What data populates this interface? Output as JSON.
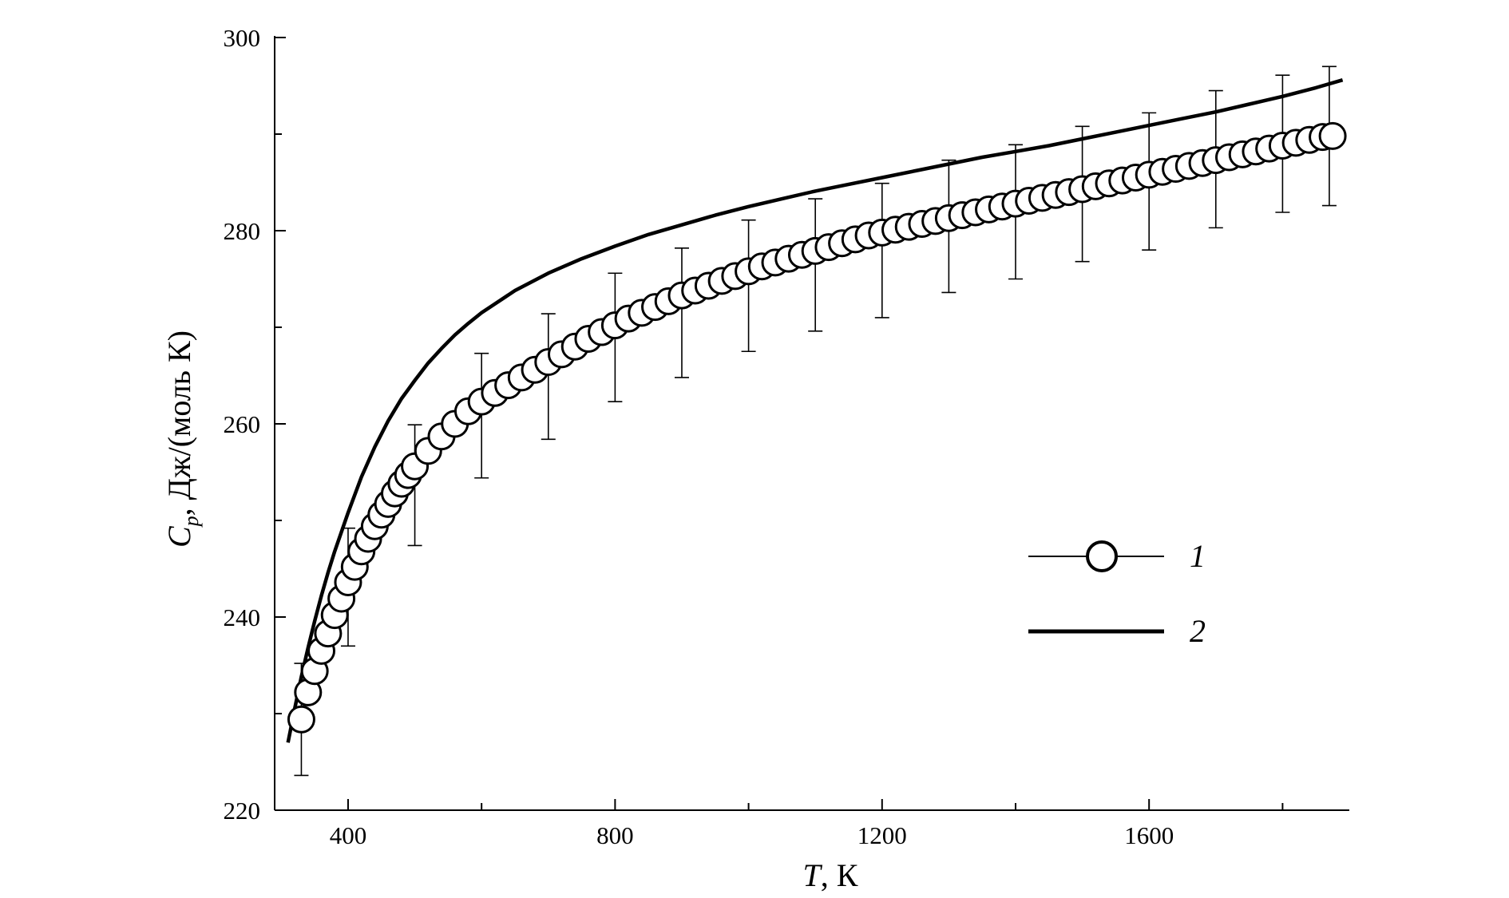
{
  "chart_data": {
    "type": "scatter",
    "xlabel": {
      "symbol": "T",
      "rest": ", К"
    },
    "ylabel": {
      "symbol": "C",
      "sub": "p",
      "rest": ", Дж/(моль К)"
    },
    "xlim": [
      290,
      1900
    ],
    "ylim": [
      220,
      300
    ],
    "xticks": [
      400,
      800,
      1200,
      1600
    ],
    "yticks": [
      220,
      240,
      260,
      280,
      300
    ],
    "grid": false,
    "legend_position": "right",
    "series": [
      {
        "name": "1",
        "style": "markers",
        "x": [
          330,
          340,
          350,
          360,
          370,
          380,
          390,
          400,
          410,
          420,
          430,
          440,
          450,
          460,
          470,
          480,
          490,
          500,
          520,
          540,
          560,
          580,
          600,
          620,
          640,
          660,
          680,
          700,
          720,
          740,
          760,
          780,
          800,
          820,
          840,
          860,
          880,
          900,
          920,
          940,
          960,
          980,
          1000,
          1020,
          1040,
          1060,
          1080,
          1100,
          1120,
          1140,
          1160,
          1180,
          1200,
          1220,
          1240,
          1260,
          1280,
          1300,
          1320,
          1340,
          1360,
          1380,
          1400,
          1420,
          1440,
          1460,
          1480,
          1500,
          1520,
          1540,
          1560,
          1580,
          1600,
          1620,
          1640,
          1660,
          1680,
          1700,
          1720,
          1740,
          1760,
          1780,
          1800,
          1820,
          1840,
          1860,
          1875
        ],
        "y": [
          229.4,
          232.2,
          234.4,
          236.5,
          238.3,
          240.2,
          241.9,
          243.6,
          245.2,
          246.8,
          248.1,
          249.4,
          250.6,
          251.7,
          252.8,
          253.8,
          254.7,
          255.6,
          257.2,
          258.7,
          260.0,
          261.3,
          262.3,
          263.2,
          264.0,
          264.8,
          265.6,
          266.4,
          267.2,
          268.0,
          268.8,
          269.5,
          270.2,
          270.9,
          271.5,
          272.1,
          272.7,
          273.3,
          273.8,
          274.3,
          274.8,
          275.3,
          275.8,
          276.3,
          276.7,
          277.1,
          277.5,
          277.9,
          278.3,
          278.7,
          279.1,
          279.5,
          279.8,
          280.1,
          280.4,
          280.7,
          281.0,
          281.3,
          281.6,
          281.9,
          282.2,
          282.5,
          282.8,
          283.1,
          283.4,
          283.7,
          284.0,
          284.3,
          284.6,
          284.9,
          285.2,
          285.5,
          285.8,
          286.1,
          286.4,
          286.7,
          287.0,
          287.3,
          287.6,
          287.9,
          288.2,
          288.5,
          288.8,
          289.1,
          289.4,
          289.7,
          289.8
        ]
      },
      {
        "name": "2",
        "style": "line",
        "x": [
          310,
          320,
          330,
          340,
          350,
          360,
          370,
          380,
          390,
          400,
          420,
          440,
          460,
          480,
          500,
          520,
          540,
          560,
          580,
          600,
          650,
          700,
          750,
          800,
          850,
          900,
          950,
          1000,
          1050,
          1100,
          1150,
          1200,
          1250,
          1300,
          1350,
          1400,
          1450,
          1500,
          1550,
          1600,
          1650,
          1700,
          1750,
          1800,
          1850,
          1890
        ],
        "y": [
          227.0,
          230.5,
          233.8,
          236.8,
          239.6,
          242.2,
          244.6,
          246.8,
          248.8,
          250.8,
          254.5,
          257.6,
          260.3,
          262.6,
          264.5,
          266.3,
          267.8,
          269.2,
          270.4,
          271.5,
          273.8,
          275.6,
          277.1,
          278.4,
          279.6,
          280.6,
          281.6,
          282.5,
          283.3,
          284.1,
          284.8,
          285.5,
          286.2,
          286.9,
          287.6,
          288.2,
          288.8,
          289.5,
          290.2,
          290.9,
          291.6,
          292.3,
          293.1,
          293.9,
          294.8,
          295.6
        ]
      }
    ],
    "error_bars": {
      "x": [
        330,
        400,
        500,
        600,
        700,
        800,
        900,
        1000,
        1100,
        1200,
        1300,
        1400,
        1500,
        1600,
        1700,
        1800,
        1870
      ],
      "low": [
        223.6,
        237.0,
        247.4,
        254.4,
        258.4,
        262.3,
        264.8,
        267.5,
        269.6,
        271.0,
        273.6,
        275.0,
        276.8,
        278.0,
        280.3,
        281.9,
        282.6
      ],
      "high": [
        235.2,
        249.2,
        259.9,
        267.3,
        271.4,
        275.6,
        278.2,
        281.1,
        283.3,
        284.9,
        287.3,
        288.9,
        290.8,
        292.2,
        294.5,
        296.1,
        297.0
      ]
    }
  }
}
